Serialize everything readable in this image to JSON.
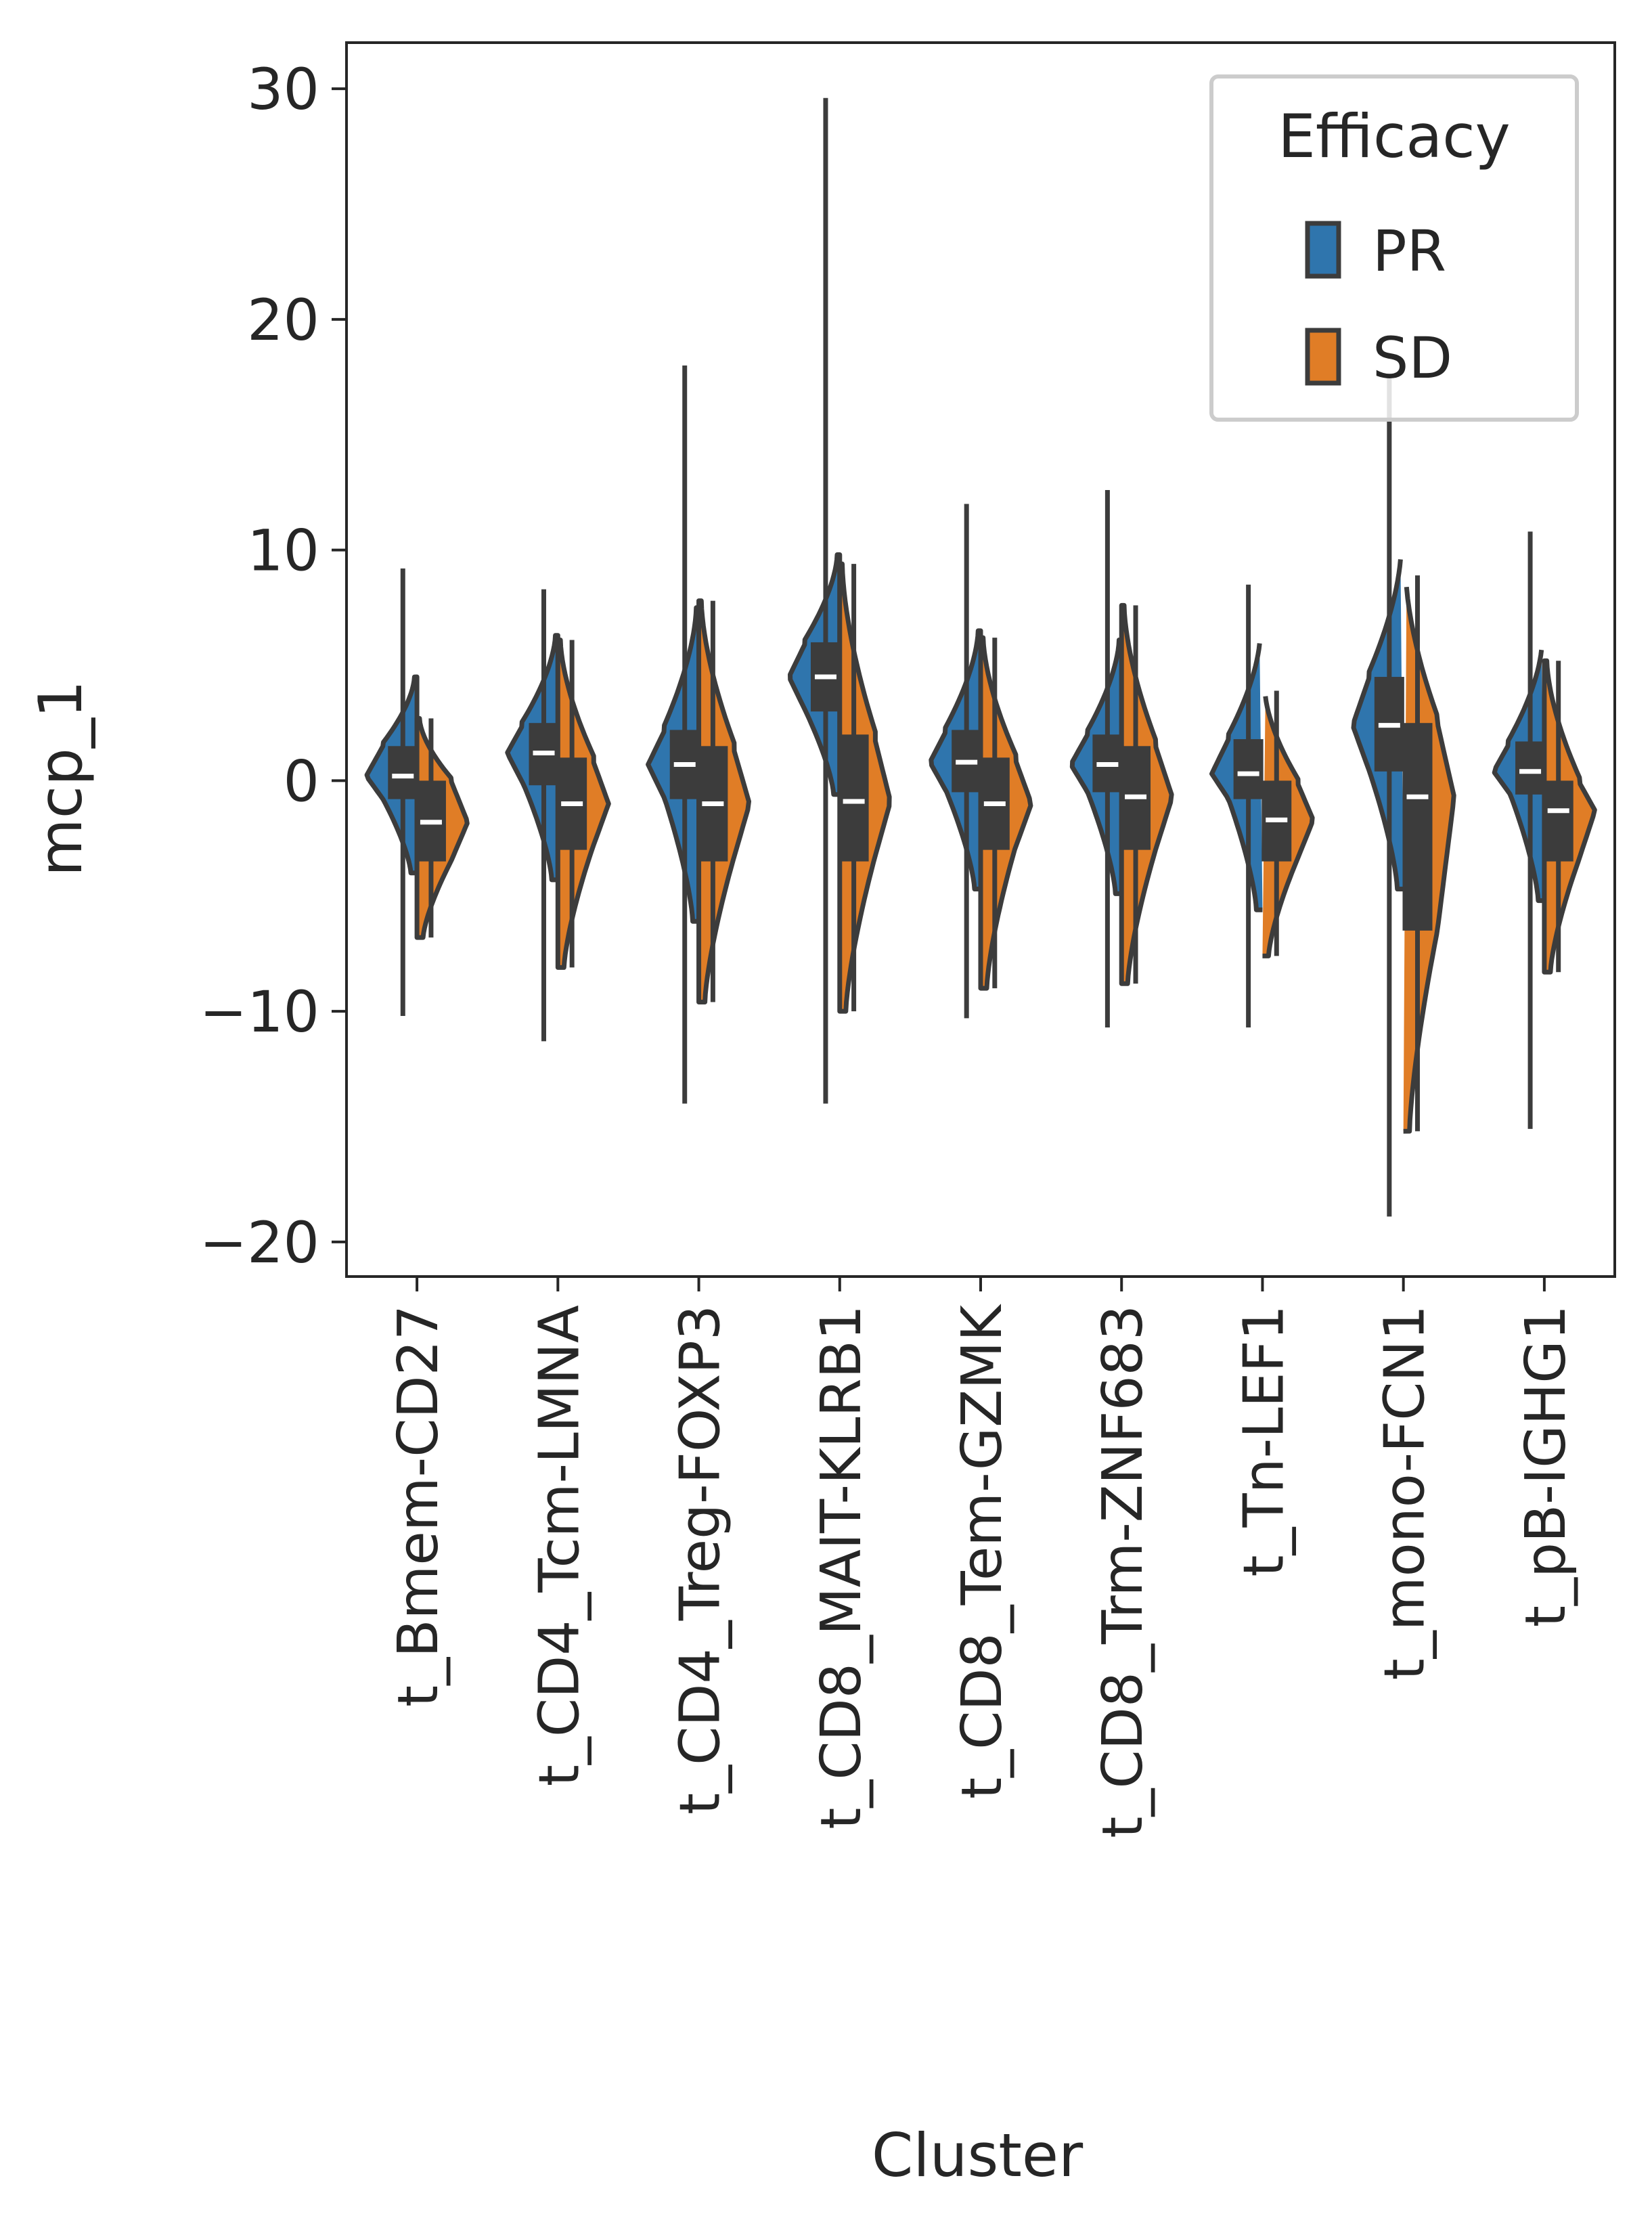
{
  "chart_data": {
    "type": "violin",
    "split": true,
    "xlabel": "Cluster",
    "ylabel": "mcp_1",
    "ylim": [
      -21.5,
      32
    ],
    "yticks": [
      30,
      20,
      10,
      0,
      -10,
      -20
    ],
    "ytick_labels": [
      "30",
      "20",
      "10",
      "0",
      "−10",
      "−20"
    ],
    "categories": [
      "t_Bmem-CD27",
      "t_CD4_Tcm-LMNA",
      "t_CD4_Treg-FOXP3",
      "t_CD8_MAIT-KLRB1",
      "t_CD8_Tem-GZMK",
      "t_CD8_Trm-ZNF683",
      "t_Tn-LEF1",
      "t_mono-FCN1",
      "t_pB-IGHG1"
    ],
    "legend": {
      "title": "Efficacy",
      "position": "top-right",
      "entries": [
        {
          "label": "PR",
          "color": "#2f75ad"
        },
        {
          "label": "SD",
          "color": "#e07d26"
        }
      ]
    },
    "series": [
      {
        "name": "PR",
        "color": "#2f75ad",
        "median": [
          0.2,
          1.2,
          0.7,
          4.5,
          0.8,
          0.7,
          0.3,
          2.4,
          0.4
        ],
        "q1": [
          -0.8,
          -0.2,
          -0.8,
          3.0,
          -0.5,
          -0.5,
          -0.8,
          0.4,
          -0.6
        ],
        "q3": [
          1.5,
          2.5,
          2.2,
          6.0,
          2.2,
          2.0,
          1.8,
          4.5,
          1.7
        ],
        "min": [
          -4.0,
          -4.3,
          -6.1,
          -0.6,
          -4.7,
          -4.9,
          -5.6,
          -4.7,
          -5.2
        ],
        "max": [
          4.5,
          6.3,
          7.5,
          9.8,
          6.5,
          6.1,
          6.2,
          9.9,
          5.9
        ]
      },
      {
        "name": "SD",
        "color": "#e07d26",
        "median": [
          -1.8,
          -1.0,
          -1.0,
          -0.9,
          -1.0,
          -0.7,
          -1.7,
          -0.7,
          -1.3
        ],
        "q1": [
          -3.5,
          -3.0,
          -3.5,
          -3.5,
          -3.0,
          -3.0,
          -3.5,
          -6.5,
          -3.5
        ],
        "q3": [
          0.0,
          1.0,
          1.5,
          2.0,
          1.0,
          1.5,
          0.0,
          2.5,
          0.0
        ],
        "min": [
          -6.8,
          -8.1,
          -9.6,
          -10.0,
          -9.0,
          -8.8,
          -7.6,
          -15.2,
          -8.3
        ],
        "max": [
          2.7,
          6.1,
          7.8,
          9.4,
          6.2,
          7.6,
          3.9,
          8.9,
          5.2
        ]
      }
    ],
    "outer_whiskers": {
      "PR": {
        "low": [
          -10.2,
          -11.3,
          -14.0,
          -14.0,
          -10.3,
          -10.7,
          -10.7,
          -18.9,
          -15.1
        ],
        "high": [
          9.2,
          8.3,
          18.0,
          29.6,
          12.0,
          12.6,
          8.5,
          17.6,
          10.8
        ]
      }
    },
    "grid": false
  }
}
